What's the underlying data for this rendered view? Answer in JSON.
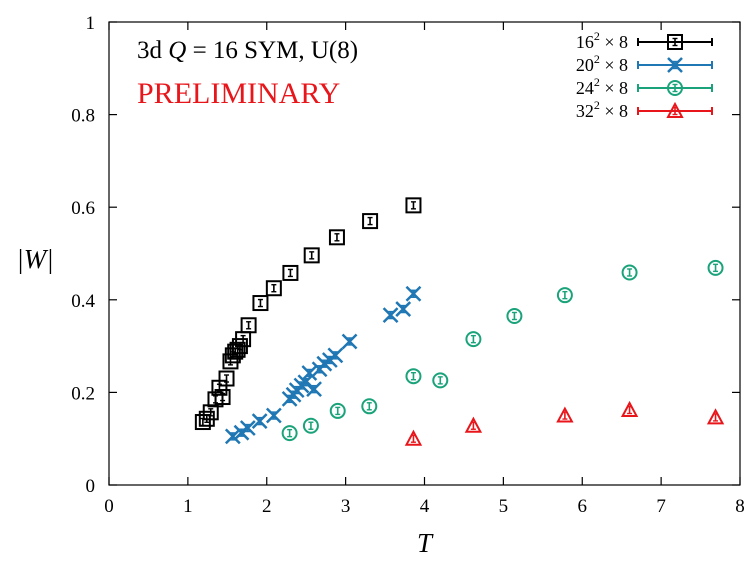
{
  "chart_data": {
    "type": "scatter",
    "title_lines": [
      {
        "prefix": "3d ",
        "italic": "Q",
        "suffix": " = 16 SYM, U(8)"
      },
      {
        "text": "PRELIMINARY",
        "color": "#e8161b"
      }
    ],
    "xlabel": "T",
    "ylabel": "|W|",
    "xlim": [
      0,
      8
    ],
    "ylim": [
      0,
      1
    ],
    "xticks": [
      0,
      1,
      2,
      3,
      4,
      5,
      6,
      7,
      8
    ],
    "yticks": [
      0,
      0.2,
      0.4,
      0.6,
      0.8,
      1
    ],
    "ytick_labels": [
      "0",
      "0.2",
      "0.4",
      "0.6",
      "0.8",
      "1"
    ],
    "grid": false,
    "legend_position": "top-right",
    "series": [
      {
        "legend": {
          "base": "16",
          "exp": "2",
          "rest": " × 8"
        },
        "marker": "square",
        "color": "#000000",
        "points": [
          [
            1.19,
            0.136
          ],
          [
            1.24,
            0.143
          ],
          [
            1.29,
            0.157
          ],
          [
            1.35,
            0.185
          ],
          [
            1.4,
            0.21
          ],
          [
            1.44,
            0.19
          ],
          [
            1.49,
            0.23
          ],
          [
            1.54,
            0.267
          ],
          [
            1.57,
            0.28
          ],
          [
            1.6,
            0.288
          ],
          [
            1.63,
            0.292
          ],
          [
            1.66,
            0.3
          ],
          [
            1.7,
            0.315
          ],
          [
            1.77,
            0.345
          ],
          [
            1.92,
            0.393
          ],
          [
            2.09,
            0.425
          ],
          [
            2.3,
            0.458
          ],
          [
            2.57,
            0.496
          ],
          [
            2.89,
            0.535
          ],
          [
            3.31,
            0.57
          ],
          [
            3.86,
            0.604
          ]
        ]
      },
      {
        "legend": {
          "base": "20",
          "exp": "2",
          "rest": " × 8"
        },
        "marker": "cross",
        "color": "#1f77b4",
        "points": [
          [
            1.57,
            0.105
          ],
          [
            1.68,
            0.113
          ],
          [
            1.76,
            0.123
          ],
          [
            1.91,
            0.138
          ],
          [
            2.09,
            0.15
          ],
          [
            2.29,
            0.186
          ],
          [
            2.34,
            0.195
          ],
          [
            2.38,
            0.205
          ],
          [
            2.44,
            0.215
          ],
          [
            2.49,
            0.222
          ],
          [
            2.54,
            0.242
          ],
          [
            2.6,
            0.207
          ],
          [
            2.67,
            0.25
          ],
          [
            2.73,
            0.262
          ],
          [
            2.8,
            0.27
          ],
          [
            2.87,
            0.28
          ],
          [
            3.05,
            0.31
          ],
          [
            3.57,
            0.367
          ],
          [
            3.73,
            0.38
          ],
          [
            3.86,
            0.413
          ]
        ]
      },
      {
        "legend": {
          "base": "24",
          "exp": "2",
          "rest": " × 8"
        },
        "marker": "circle",
        "color": "#1aa37a",
        "points": [
          [
            2.29,
            0.112
          ],
          [
            2.56,
            0.128
          ],
          [
            2.9,
            0.16
          ],
          [
            3.3,
            0.17
          ],
          [
            3.86,
            0.235
          ],
          [
            4.2,
            0.226
          ],
          [
            4.62,
            0.315
          ],
          [
            5.14,
            0.365
          ],
          [
            5.78,
            0.41
          ],
          [
            6.6,
            0.459
          ],
          [
            7.69,
            0.469
          ]
        ]
      },
      {
        "legend": {
          "base": "32",
          "exp": "2",
          "rest": " × 8"
        },
        "marker": "triangle",
        "color": "#e8161b",
        "points": [
          [
            3.86,
            0.1
          ],
          [
            4.62,
            0.128
          ],
          [
            5.78,
            0.15
          ],
          [
            6.6,
            0.162
          ],
          [
            7.69,
            0.146
          ]
        ]
      }
    ]
  }
}
